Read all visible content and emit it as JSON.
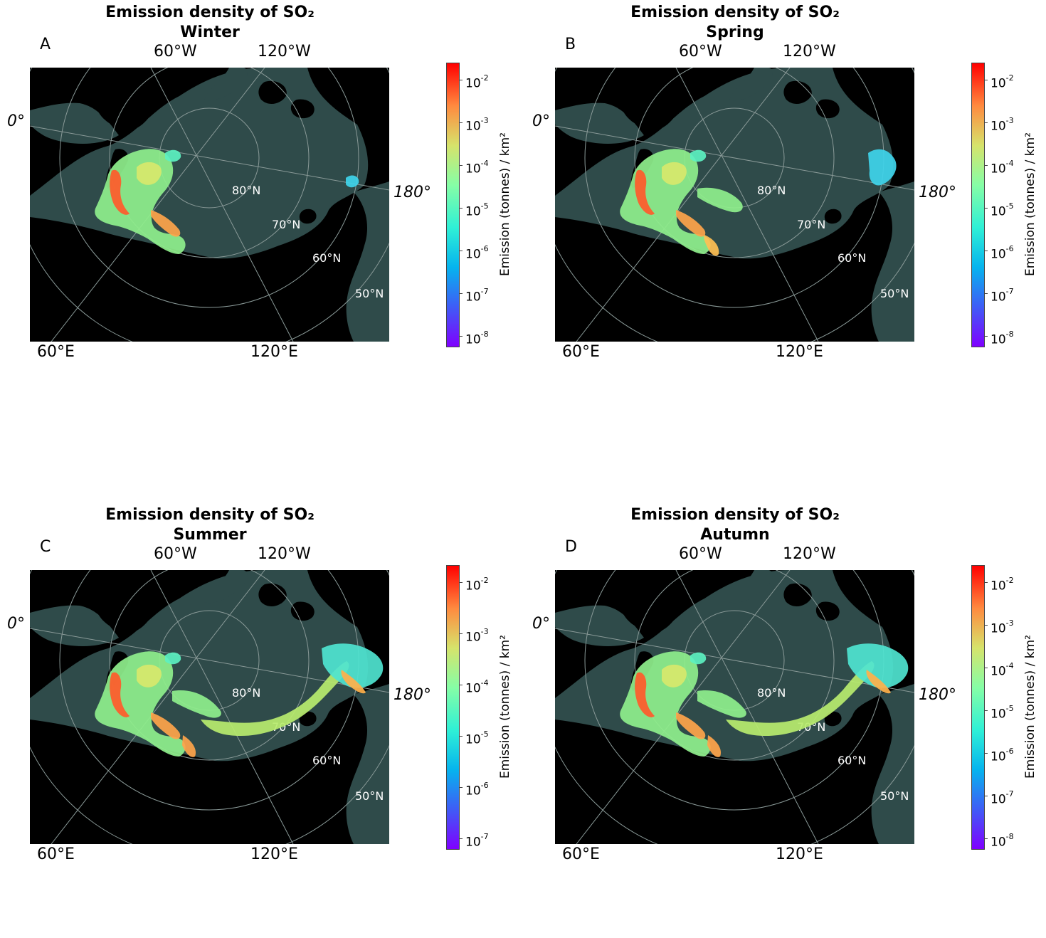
{
  "panels": [
    {
      "title": "Emission density of SO₂",
      "season": "Winter",
      "letter": "A",
      "colorbar_ticks": [
        "10",
        "10",
        "10",
        "10",
        "10",
        "10",
        "10"
      ],
      "colorbar_exponents": [
        "-2",
        "-3",
        "-4",
        "-5",
        "-6",
        "-7",
        "-8"
      ],
      "coverage": "west"
    },
    {
      "title": "Emission density of SO₂",
      "season": "Spring",
      "letter": "B",
      "colorbar_ticks": [
        "10",
        "10",
        "10",
        "10",
        "10",
        "10",
        "10"
      ],
      "colorbar_exponents": [
        "-2",
        "-3",
        "-4",
        "-5",
        "-6",
        "-7",
        "-8"
      ],
      "coverage": "west-plus"
    },
    {
      "title": "Emission density of SO₂",
      "season": "Summer",
      "letter": "C",
      "colorbar_ticks": [
        "10",
        "10",
        "10",
        "10",
        "10",
        "10"
      ],
      "colorbar_exponents": [
        "-2",
        "-3",
        "-4",
        "-5",
        "-6",
        "-7"
      ],
      "coverage": "full"
    },
    {
      "title": "Emission density of SO₂",
      "season": "Autumn",
      "letter": "D",
      "colorbar_ticks": [
        "10",
        "10",
        "10",
        "10",
        "10",
        "10",
        "10"
      ],
      "colorbar_exponents": [
        "-2",
        "-3",
        "-4",
        "-5",
        "-6",
        "-7",
        "-8"
      ],
      "coverage": "full"
    }
  ],
  "map_labels": {
    "lon_60w": "60°W",
    "lon_120w": "120°W",
    "lon_0": "0°",
    "lon_180": "180°",
    "lon_60e": "60°E",
    "lon_120e": "120°E",
    "lat_80": "80°N",
    "lat_70": "70°N",
    "lat_60": "60°N",
    "lat_50": "50°N"
  },
  "colorbar_label": "Emission (tonnes) / km²",
  "colors": {
    "ocean": "#2f4b4a",
    "land": "#000000",
    "grid": "#8a9a98",
    "colormap": "rainbow"
  }
}
